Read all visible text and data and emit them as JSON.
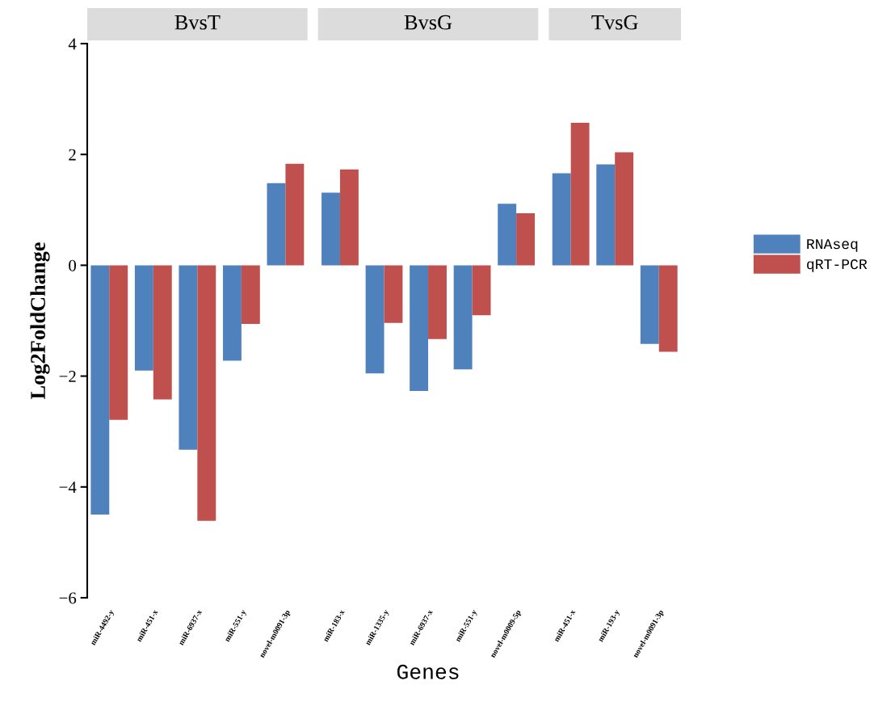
{
  "chart_data": [
    {
      "type": "bar",
      "title": "BvsT",
      "ylabel": "Log2FoldChange",
      "categories": [
        "miR-4492-y",
        "miR-451-x",
        "miR-6937-x",
        "miR-551-y",
        "novel-m0091-3p"
      ],
      "series": [
        {
          "color": "#4f81bd",
          "values": [
            -4.5,
            -1.9,
            -3.33,
            -1.72,
            1.48
          ]
        },
        {
          "color": "#c0504d",
          "values": [
            -2.79,
            -2.42,
            -4.61,
            -1.06,
            1.83
          ]
        }
      ],
      "ylim": [
        -6,
        4
      ],
      "yticks": [
        -6,
        -4,
        -2,
        0,
        2,
        4
      ],
      "grid": false
    },
    {
      "type": "bar",
      "title": "BvsG",
      "xlabel": "Genes",
      "categories": [
        "miR-183-x",
        "miR-1335-y",
        "miR-6937-x",
        "miR-551-y",
        "novel-m0009-5p"
      ],
      "series": [
        {
          "color": "#4f81bd",
          "values": [
            1.31,
            -1.95,
            -2.27,
            -1.88,
            1.11
          ]
        },
        {
          "color": "#c0504d",
          "values": [
            1.73,
            -1.04,
            -1.33,
            -0.9,
            0.94
          ]
        }
      ],
      "ylim": [
        -6,
        4
      ],
      "tick_labels": "x",
      "grid": false
    },
    {
      "type": "bar",
      "title": "TvsG",
      "categories": [
        "miR-451-x",
        "miR-193-y",
        "novel-m0091-3p"
      ],
      "series": [
        {
          "name": "RNAseq",
          "color": "#4f81bd",
          "values": [
            1.66,
            1.82,
            -1.42
          ]
        },
        {
          "name": "qRT-PCR",
          "color": "#c0504d",
          "values": [
            2.57,
            2.04,
            -1.56
          ]
        }
      ],
      "ylim": [
        -6,
        4
      ],
      "tick_labels": "x",
      "grid": false,
      "legend": "right"
    }
  ]
}
